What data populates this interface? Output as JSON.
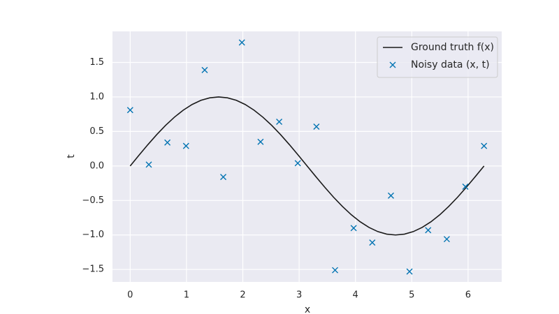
{
  "chart_data": {
    "type": "line",
    "xlabel": "x",
    "ylabel": "t",
    "xlim": [
      -0.314,
      6.597
    ],
    "ylim": [
      -1.68,
      1.95
    ],
    "xticks": [
      0,
      1,
      2,
      3,
      4,
      5,
      6
    ],
    "yticks": [
      {
        "value": -1.5,
        "label": "−1.5"
      },
      {
        "value": -1.0,
        "label": "−1.0"
      },
      {
        "value": -0.5,
        "label": "−0.5"
      },
      {
        "value": 0.0,
        "label": "0.0"
      },
      0.5,
      {
        "value": 1.0,
        "label": "1.0"
      },
      1.5
    ],
    "grid": true,
    "background": "#eaeaf2",
    "legend": "upper right",
    "series": [
      {
        "name": "Ground truth f(x)",
        "type": "line",
        "color": "#1a1a1a",
        "x": [
          0,
          0.1571,
          0.3142,
          0.4712,
          0.6283,
          0.7854,
          0.9425,
          1.0996,
          1.2566,
          1.4137,
          1.5708,
          1.7279,
          1.885,
          2.042,
          2.1991,
          2.3562,
          2.5133,
          2.6704,
          2.8274,
          2.9845,
          3.1416,
          3.2987,
          3.4558,
          3.6128,
          3.7699,
          3.927,
          4.0841,
          4.2412,
          4.3982,
          4.5553,
          4.7124,
          4.8695,
          5.0265,
          5.1836,
          5.3407,
          5.4978,
          5.6549,
          5.8119,
          5.969,
          6.1261,
          6.2832
        ],
        "values": [
          0,
          0.1564,
          0.309,
          0.454,
          0.5878,
          0.7071,
          0.809,
          0.891,
          0.9511,
          0.9877,
          1.0,
          0.9877,
          0.9511,
          0.891,
          0.809,
          0.7071,
          0.5878,
          0.454,
          0.309,
          0.1564,
          0,
          -0.1564,
          -0.309,
          -0.454,
          -0.5878,
          -0.7071,
          -0.809,
          -0.891,
          -0.9511,
          -0.9877,
          -1.0,
          -0.9877,
          -0.9511,
          -0.891,
          -0.809,
          -0.7071,
          -0.5878,
          -0.454,
          -0.309,
          -0.1564,
          0
        ]
      },
      {
        "name": "Noisy data (x, t)",
        "type": "scatter",
        "color": "#0173b2",
        "x": [
          0,
          0.331,
          0.661,
          0.992,
          1.323,
          1.653,
          1.984,
          2.315,
          2.646,
          2.976,
          3.307,
          3.638,
          3.968,
          4.299,
          4.63,
          4.96,
          5.291,
          5.622,
          5.952,
          6.283
        ],
        "values": [
          0.81,
          0.02,
          0.34,
          0.29,
          1.39,
          -0.16,
          1.79,
          0.35,
          0.64,
          0.04,
          0.57,
          -1.51,
          -0.9,
          -1.11,
          -0.43,
          -1.53,
          -0.93,
          -1.06,
          -0.3,
          0.29
        ]
      }
    ]
  }
}
